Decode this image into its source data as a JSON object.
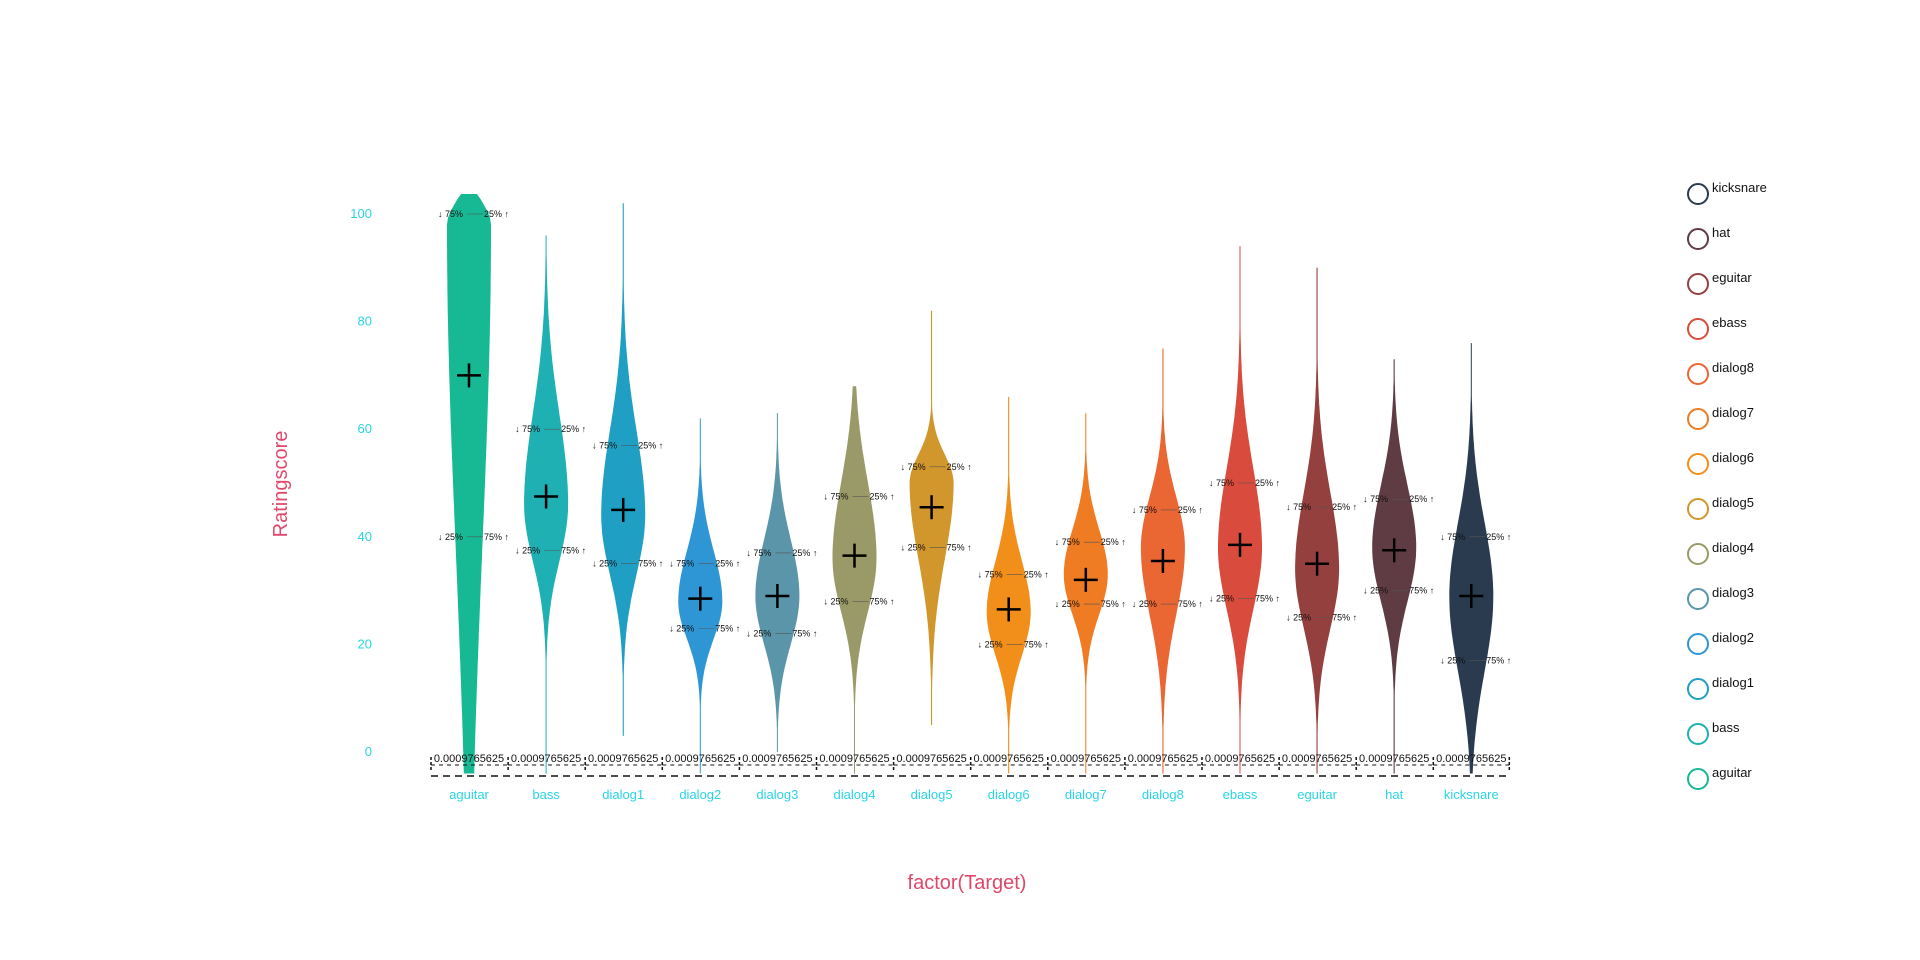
{
  "chart_data": {
    "type": "violin",
    "xlabel": "factor(Target)",
    "ylabel": "Ratingscore",
    "ylim": [
      0,
      100
    ],
    "yticks": [
      0,
      20,
      40,
      60,
      80,
      100
    ],
    "baseline_label": "0.0009765625",
    "quantile_labels": {
      "upper_left": "↓ 75%",
      "upper_right": "25% ↑",
      "lower_left": "↓ 25%",
      "lower_right": "75% ↑"
    },
    "categories": [
      "aguitar",
      "bass",
      "dialog1",
      "dialog2",
      "dialog3",
      "dialog4",
      "dialog5",
      "dialog6",
      "dialog7",
      "dialog8",
      "ebass",
      "eguitar",
      "hat",
      "kicksnare"
    ],
    "series": [
      {
        "category": "aguitar",
        "color": "#16b993",
        "mean": 70,
        "q1": 40,
        "q3": 100,
        "min": -4,
        "max": 104,
        "mode": 98
      },
      {
        "category": "bass",
        "color": "#1fb0b4",
        "mean": 47.5,
        "q1": 37.5,
        "q3": 60,
        "min": -4,
        "max": 96,
        "mode": 46
      },
      {
        "category": "dialog1",
        "color": "#1f9fc4",
        "mean": 45,
        "q1": 35,
        "q3": 57,
        "min": 3,
        "max": 102,
        "mode": 44
      },
      {
        "category": "dialog2",
        "color": "#2f96d6",
        "mean": 28.5,
        "q1": 23,
        "q3": 35,
        "min": -4,
        "max": 62,
        "mode": 28
      },
      {
        "category": "dialog3",
        "color": "#5b95a9",
        "mean": 29,
        "q1": 22,
        "q3": 37,
        "min": 0,
        "max": 63,
        "mode": 29
      },
      {
        "category": "dialog4",
        "color": "#9a9a68",
        "mean": 36.5,
        "q1": 28,
        "q3": 47.5,
        "min": -4,
        "max": 68,
        "mode": 36
      },
      {
        "category": "dialog5",
        "color": "#d2972c",
        "mean": 45.5,
        "q1": 38,
        "q3": 53,
        "min": 5,
        "max": 82,
        "mode": 50
      },
      {
        "category": "dialog6",
        "color": "#f28f1a",
        "mean": 26.5,
        "q1": 20,
        "q3": 33,
        "min": -4,
        "max": 66,
        "mode": 26
      },
      {
        "category": "dialog7",
        "color": "#ef7b22",
        "mean": 32,
        "q1": 27.5,
        "q3": 39,
        "min": -4,
        "max": 63,
        "mode": 33
      },
      {
        "category": "dialog8",
        "color": "#ea6633",
        "mean": 35.5,
        "q1": 27.5,
        "q3": 45,
        "min": -4,
        "max": 75,
        "mode": 38
      },
      {
        "category": "ebass",
        "color": "#d94b3c",
        "mean": 38.5,
        "q1": 28.5,
        "q3": 50,
        "min": -4,
        "max": 94,
        "mode": 38
      },
      {
        "category": "eguitar",
        "color": "#94403e",
        "mean": 35,
        "q1": 25,
        "q3": 45.5,
        "min": -4,
        "max": 90,
        "mode": 34
      },
      {
        "category": "hat",
        "color": "#5f3c44",
        "mean": 37.5,
        "q1": 30,
        "q3": 47,
        "min": -4,
        "max": 73,
        "mode": 38
      },
      {
        "category": "kicksnare",
        "color": "#2a3b4f",
        "mean": 29,
        "q1": 17,
        "q3": 40,
        "min": -4,
        "max": 76,
        "mode": 29
      }
    ],
    "legend": {
      "position": "right",
      "items": [
        {
          "label": "kicksnare",
          "color": "#2a3b4f"
        },
        {
          "label": "hat",
          "color": "#5f3c44"
        },
        {
          "label": "eguitar",
          "color": "#94403e"
        },
        {
          "label": "ebass",
          "color": "#d94b3c"
        },
        {
          "label": "dialog8",
          "color": "#ea6633"
        },
        {
          "label": "dialog7",
          "color": "#ef7b22"
        },
        {
          "label": "dialog6",
          "color": "#f28f1a"
        },
        {
          "label": "dialog5",
          "color": "#d2972c"
        },
        {
          "label": "dialog4",
          "color": "#9a9a68"
        },
        {
          "label": "dialog3",
          "color": "#5b95a9"
        },
        {
          "label": "dialog2",
          "color": "#2f96d6"
        },
        {
          "label": "dialog1",
          "color": "#1f9fc4"
        },
        {
          "label": "bass",
          "color": "#1fb0b4"
        },
        {
          "label": "aguitar",
          "color": "#16b993"
        }
      ]
    }
  }
}
